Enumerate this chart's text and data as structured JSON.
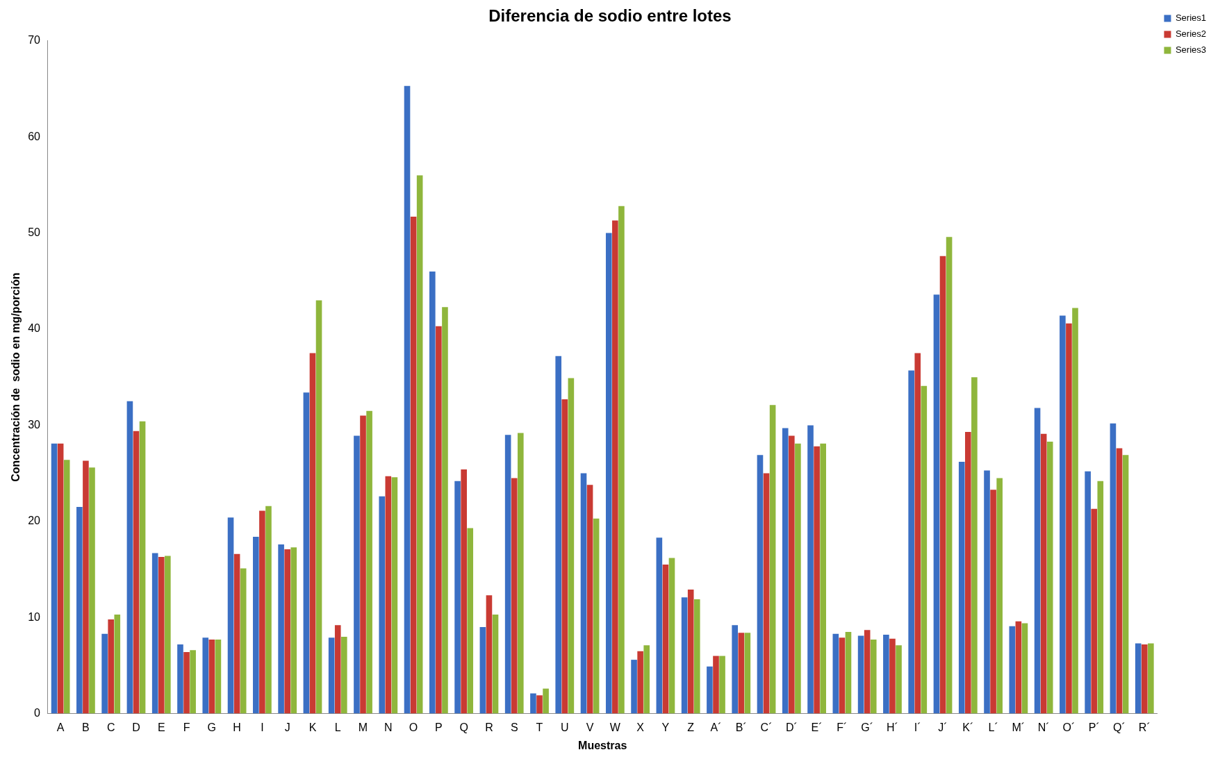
{
  "chart_data": {
    "type": "bar",
    "title": "Diferencia de sodio entre lotes",
    "xlabel": "Muestras",
    "ylabel": "Concentración de  sodio en mg/porción",
    "categories": [
      "A",
      "B",
      "C",
      "D",
      "E",
      "F",
      "G",
      "H",
      "I",
      "J",
      "K",
      "L",
      "M",
      "N",
      "O",
      "P",
      "Q",
      "R",
      "S",
      "T",
      "U",
      "V",
      "W",
      "X",
      "Y",
      "Z",
      "A´",
      "B´",
      "C´",
      "D´",
      "E´",
      "F´",
      "G´",
      "H´",
      "I´",
      "J´",
      "K´",
      "L´",
      "M´",
      "N´",
      "O´",
      "P´",
      "Q´",
      "R´"
    ],
    "series": [
      {
        "name": "Series1",
        "color": "#3b6fc4",
        "values": [
          28.1,
          21.5,
          8.3,
          32.5,
          16.7,
          7.2,
          7.9,
          20.4,
          18.4,
          17.6,
          33.4,
          7.9,
          28.9,
          22.6,
          65.3,
          46.0,
          24.2,
          9.0,
          29.0,
          2.1,
          37.2,
          25.0,
          50.0,
          5.6,
          18.3,
          12.1,
          4.9,
          9.2,
          26.9,
          29.7,
          30.0,
          8.3,
          8.1,
          8.2,
          35.7,
          43.6,
          26.2,
          25.3,
          9.1,
          31.8,
          41.4,
          25.2,
          30.2,
          7.3
        ]
      },
      {
        "name": "Series2",
        "color": "#c93a33",
        "values": [
          28.1,
          26.3,
          9.8,
          29.4,
          16.3,
          6.4,
          7.7,
          16.6,
          21.1,
          17.1,
          37.5,
          9.2,
          31.0,
          24.7,
          51.7,
          40.3,
          25.4,
          12.3,
          24.5,
          1.9,
          32.7,
          23.8,
          51.3,
          6.5,
          15.5,
          12.9,
          6.0,
          8.4,
          25.0,
          28.9,
          27.8,
          7.9,
          8.7,
          7.8,
          37.5,
          47.6,
          29.3,
          23.3,
          9.6,
          29.1,
          40.6,
          21.3,
          27.6,
          7.2
        ]
      },
      {
        "name": "Series3",
        "color": "#8fb63c",
        "values": [
          26.4,
          25.6,
          10.3,
          30.4,
          16.4,
          6.6,
          7.7,
          15.1,
          21.6,
          17.3,
          43.0,
          8.0,
          31.5,
          24.6,
          56.0,
          42.3,
          19.3,
          10.3,
          29.2,
          2.6,
          34.9,
          20.3,
          52.8,
          7.1,
          16.2,
          11.9,
          6.0,
          8.4,
          32.1,
          28.1,
          28.1,
          8.5,
          7.7,
          7.1,
          34.1,
          49.6,
          35.0,
          24.5,
          9.4,
          28.3,
          42.2,
          24.2,
          26.9,
          7.3
        ]
      }
    ],
    "ylim": [
      0,
      70
    ],
    "yticks": [
      0,
      10,
      20,
      30,
      40,
      50,
      60,
      70
    ],
    "grid": false,
    "legend": "top right"
  }
}
